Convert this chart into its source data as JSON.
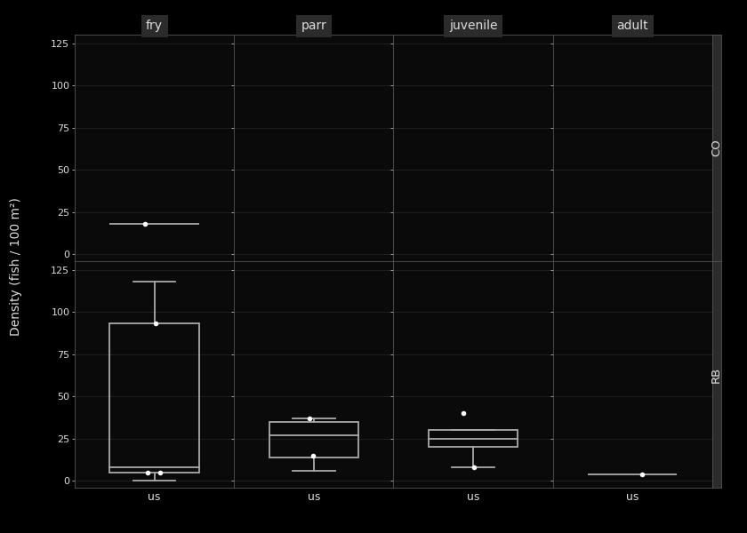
{
  "col_labels": [
    "fry",
    "parr",
    "juvenile",
    "adult"
  ],
  "row_labels": [
    "CO",
    "RB"
  ],
  "x_label": "us",
  "y_label": "Density (fish / 100 m²)",
  "y_ticks": [
    0,
    25,
    50,
    75,
    100,
    125
  ],
  "y_lim": [
    -4,
    130
  ],
  "background_color": "#000000",
  "panel_bg": "#0a0a0a",
  "grid_color": "#222222",
  "box_color": "#aaaaaa",
  "median_color": "#aaaaaa",
  "point_color": "#ffffff",
  "text_color": "#dddddd",
  "label_bg": "#2b2b2b",
  "spine_color": "#555555",
  "boxes": {
    "CO": {
      "fry": {
        "q1": 18,
        "median": 18,
        "q3": 18,
        "whislo": 18,
        "whishi": 18,
        "points": [
          18
        ]
      },
      "parr": null,
      "juvenile": null,
      "adult": null
    },
    "RB": {
      "fry": {
        "q1": 5,
        "median": 8,
        "q3": 93,
        "whislo": 0,
        "whishi": 118,
        "points": [
          5,
          5,
          93
        ]
      },
      "parr": {
        "q1": 14,
        "median": 27,
        "q3": 35,
        "whislo": 6,
        "whishi": 37,
        "points": [
          15,
          37
        ]
      },
      "juvenile": {
        "q1": 20,
        "median": 25,
        "q3": 30,
        "whislo": 8,
        "whishi": 30,
        "points": [
          8,
          40
        ]
      },
      "adult": {
        "q1": 4,
        "median": 4,
        "q3": 4,
        "whislo": 4,
        "whishi": 4,
        "points": [
          4
        ]
      }
    }
  }
}
